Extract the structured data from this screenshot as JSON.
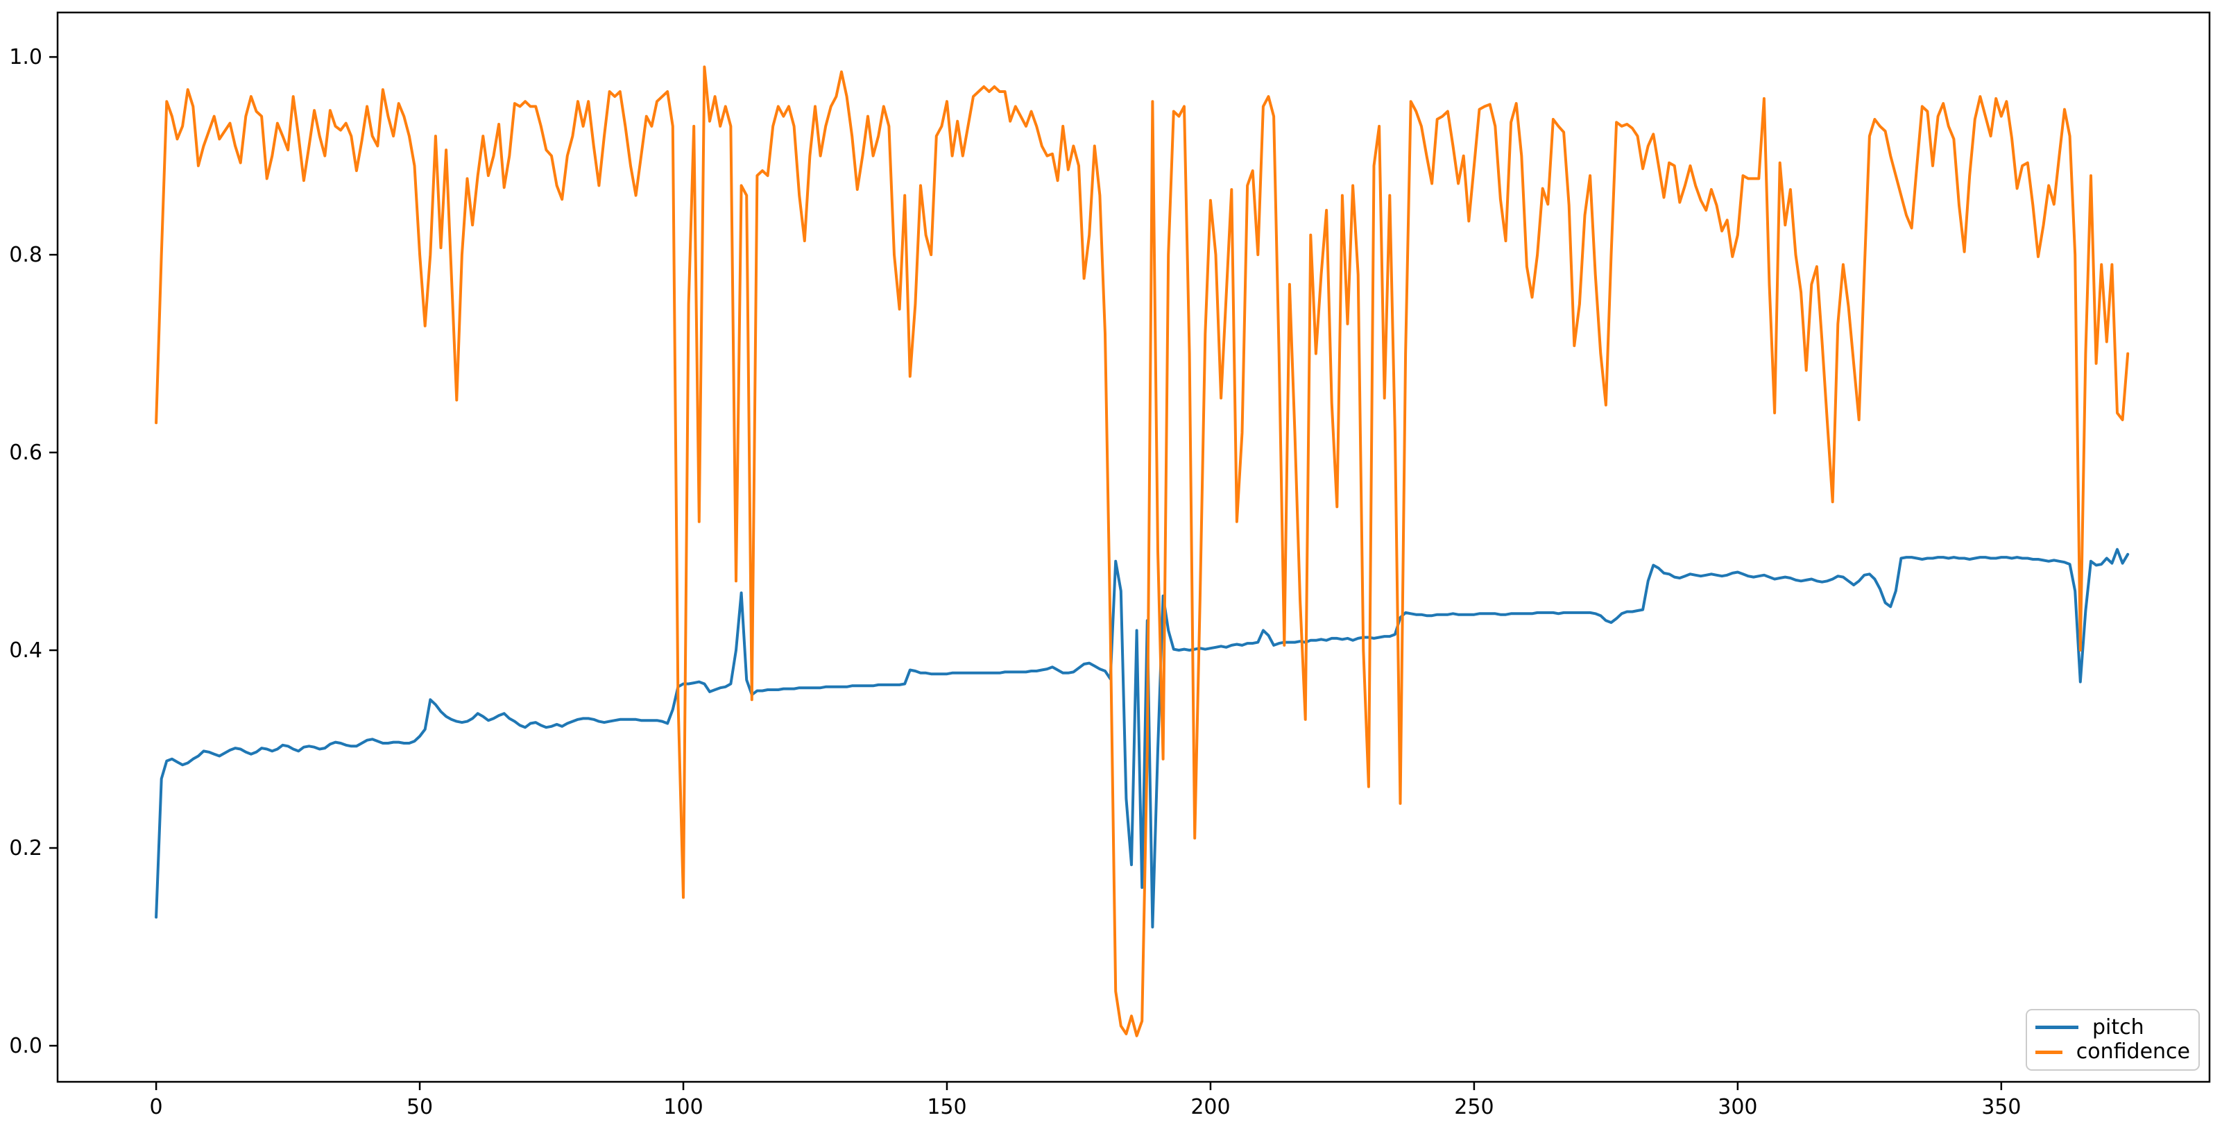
{
  "chart_data": {
    "type": "line",
    "title": "",
    "xlabel": "",
    "ylabel": "",
    "grid": false,
    "background": "#ffffff",
    "legend_position": "lower right",
    "x_start": 0,
    "x_step": 1,
    "xlim": [
      -18.7,
      389.5
    ],
    "ylim": [
      -0.0365,
      1.045
    ],
    "x_ticks": [
      0,
      50,
      100,
      150,
      200,
      250,
      300,
      350
    ],
    "y_ticks": [
      0.0,
      0.2,
      0.4,
      0.6,
      0.8,
      1.0
    ],
    "x_ticklabels": [
      "0",
      "50",
      "100",
      "150",
      "200",
      "250",
      "300",
      "350"
    ],
    "y_ticklabels": [
      "0.0",
      "0.2",
      "0.4",
      "0.6",
      "0.8",
      "1.0"
    ],
    "series": [
      {
        "name": "pitch",
        "color": "#1f77b4",
        "values": [
          0.13,
          0.27,
          0.288,
          0.29,
          0.287,
          0.284,
          0.286,
          0.29,
          0.293,
          0.298,
          0.297,
          0.295,
          0.293,
          0.296,
          0.299,
          0.301,
          0.3,
          0.297,
          0.295,
          0.297,
          0.301,
          0.3,
          0.298,
          0.3,
          0.304,
          0.303,
          0.3,
          0.298,
          0.302,
          0.303,
          0.302,
          0.3,
          0.301,
          0.305,
          0.307,
          0.306,
          0.304,
          0.303,
          0.303,
          0.306,
          0.309,
          0.31,
          0.308,
          0.306,
          0.306,
          0.307,
          0.307,
          0.306,
          0.306,
          0.308,
          0.313,
          0.32,
          0.35,
          0.345,
          0.338,
          0.333,
          0.33,
          0.328,
          0.327,
          0.328,
          0.331,
          0.336,
          0.333,
          0.329,
          0.331,
          0.334,
          0.336,
          0.331,
          0.328,
          0.324,
          0.322,
          0.326,
          0.327,
          0.324,
          0.322,
          0.323,
          0.325,
          0.323,
          0.326,
          0.328,
          0.33,
          0.331,
          0.331,
          0.33,
          0.328,
          0.327,
          0.328,
          0.329,
          0.33,
          0.33,
          0.33,
          0.33,
          0.329,
          0.329,
          0.329,
          0.329,
          0.328,
          0.326,
          0.34,
          0.363,
          0.366,
          0.366,
          0.367,
          0.368,
          0.366,
          0.358,
          0.36,
          0.362,
          0.363,
          0.366,
          0.4,
          0.458,
          0.37,
          0.355,
          0.359,
          0.359,
          0.36,
          0.36,
          0.36,
          0.361,
          0.361,
          0.361,
          0.362,
          0.362,
          0.362,
          0.362,
          0.362,
          0.363,
          0.363,
          0.363,
          0.363,
          0.363,
          0.364,
          0.364,
          0.364,
          0.364,
          0.364,
          0.365,
          0.365,
          0.365,
          0.365,
          0.365,
          0.366,
          0.38,
          0.379,
          0.377,
          0.377,
          0.376,
          0.376,
          0.376,
          0.376,
          0.377,
          0.377,
          0.377,
          0.377,
          0.377,
          0.377,
          0.377,
          0.377,
          0.377,
          0.377,
          0.378,
          0.378,
          0.378,
          0.378,
          0.378,
          0.379,
          0.379,
          0.38,
          0.381,
          0.383,
          0.38,
          0.377,
          0.377,
          0.378,
          0.382,
          0.386,
          0.387,
          0.384,
          0.381,
          0.379,
          0.371,
          0.49,
          0.46,
          0.25,
          0.183,
          0.42,
          0.16,
          0.43,
          0.12,
          0.3,
          0.455,
          0.42,
          0.401,
          0.4,
          0.401,
          0.4,
          0.401,
          0.402,
          0.401,
          0.402,
          0.403,
          0.404,
          0.403,
          0.405,
          0.406,
          0.405,
          0.407,
          0.407,
          0.408,
          0.42,
          0.415,
          0.405,
          0.407,
          0.408,
          0.408,
          0.408,
          0.409,
          0.408,
          0.41,
          0.41,
          0.411,
          0.41,
          0.412,
          0.412,
          0.411,
          0.412,
          0.41,
          0.412,
          0.413,
          0.413,
          0.412,
          0.413,
          0.414,
          0.414,
          0.416,
          0.433,
          0.438,
          0.437,
          0.436,
          0.436,
          0.435,
          0.435,
          0.436,
          0.436,
          0.436,
          0.437,
          0.436,
          0.436,
          0.436,
          0.436,
          0.437,
          0.437,
          0.437,
          0.437,
          0.436,
          0.436,
          0.437,
          0.437,
          0.437,
          0.437,
          0.437,
          0.438,
          0.438,
          0.438,
          0.438,
          0.437,
          0.438,
          0.438,
          0.438,
          0.438,
          0.438,
          0.438,
          0.437,
          0.435,
          0.43,
          0.428,
          0.432,
          0.437,
          0.439,
          0.439,
          0.44,
          0.441,
          0.47,
          0.486,
          0.483,
          0.478,
          0.477,
          0.474,
          0.473,
          0.475,
          0.477,
          0.476,
          0.475,
          0.476,
          0.477,
          0.476,
          0.475,
          0.476,
          0.478,
          0.479,
          0.477,
          0.475,
          0.474,
          0.475,
          0.476,
          0.474,
          0.472,
          0.473,
          0.474,
          0.473,
          0.471,
          0.47,
          0.471,
          0.472,
          0.47,
          0.469,
          0.47,
          0.472,
          0.475,
          0.474,
          0.47,
          0.466,
          0.47,
          0.476,
          0.477,
          0.472,
          0.462,
          0.448,
          0.444,
          0.46,
          0.493,
          0.494,
          0.494,
          0.493,
          0.492,
          0.493,
          0.493,
          0.494,
          0.494,
          0.493,
          0.494,
          0.493,
          0.493,
          0.492,
          0.493,
          0.494,
          0.494,
          0.493,
          0.493,
          0.494,
          0.494,
          0.493,
          0.494,
          0.493,
          0.493,
          0.492,
          0.492,
          0.491,
          0.49,
          0.491,
          0.49,
          0.489,
          0.487,
          0.46,
          0.368,
          0.44,
          0.49,
          0.486,
          0.487,
          0.493,
          0.488,
          0.502,
          0.488,
          0.497
        ]
      },
      {
        "name": "confidence",
        "color": "#ff7f0e",
        "values": [
          0.63,
          0.8,
          0.955,
          0.94,
          0.917,
          0.93,
          0.967,
          0.95,
          0.89,
          0.91,
          0.925,
          0.94,
          0.917,
          0.925,
          0.933,
          0.91,
          0.893,
          0.94,
          0.96,
          0.945,
          0.94,
          0.877,
          0.9,
          0.933,
          0.92,
          0.906,
          0.96,
          0.92,
          0.875,
          0.91,
          0.946,
          0.92,
          0.9,
          0.946,
          0.93,
          0.926,
          0.933,
          0.92,
          0.885,
          0.915,
          0.95,
          0.92,
          0.91,
          0.967,
          0.94,
          0.92,
          0.953,
          0.94,
          0.92,
          0.89,
          0.8,
          0.728,
          0.8,
          0.92,
          0.807,
          0.906,
          0.78,
          0.653,
          0.8,
          0.877,
          0.83,
          0.88,
          0.92,
          0.88,
          0.9,
          0.932,
          0.868,
          0.9,
          0.953,
          0.95,
          0.955,
          0.95,
          0.95,
          0.93,
          0.906,
          0.9,
          0.87,
          0.856,
          0.9,
          0.92,
          0.955,
          0.93,
          0.955,
          0.91,
          0.87,
          0.92,
          0.965,
          0.96,
          0.965,
          0.93,
          0.89,
          0.86,
          0.9,
          0.94,
          0.93,
          0.955,
          0.96,
          0.965,
          0.93,
          0.35,
          0.15,
          0.75,
          0.93,
          0.53,
          0.99,
          0.935,
          0.96,
          0.93,
          0.95,
          0.93,
          0.47,
          0.87,
          0.86,
          0.35,
          0.88,
          0.885,
          0.88,
          0.93,
          0.95,
          0.94,
          0.95,
          0.93,
          0.86,
          0.814,
          0.9,
          0.95,
          0.9,
          0.93,
          0.95,
          0.96,
          0.985,
          0.96,
          0.92,
          0.866,
          0.9,
          0.94,
          0.9,
          0.92,
          0.95,
          0.93,
          0.8,
          0.745,
          0.86,
          0.677,
          0.75,
          0.87,
          0.82,
          0.8,
          0.92,
          0.93,
          0.955,
          0.9,
          0.935,
          0.9,
          0.93,
          0.96,
          0.965,
          0.97,
          0.965,
          0.97,
          0.965,
          0.965,
          0.935,
          0.95,
          0.94,
          0.93,
          0.945,
          0.93,
          0.91,
          0.9,
          0.902,
          0.875,
          0.93,
          0.886,
          0.91,
          0.89,
          0.776,
          0.82,
          0.91,
          0.86,
          0.72,
          0.42,
          0.055,
          0.02,
          0.012,
          0.03,
          0.01,
          0.025,
          0.3,
          0.955,
          0.5,
          0.29,
          0.8,
          0.945,
          0.94,
          0.95,
          0.7,
          0.21,
          0.45,
          0.72,
          0.855,
          0.8,
          0.655,
          0.76,
          0.866,
          0.53,
          0.62,
          0.87,
          0.885,
          0.8,
          0.95,
          0.96,
          0.94,
          0.7,
          0.405,
          0.77,
          0.62,
          0.45,
          0.33,
          0.82,
          0.7,
          0.78,
          0.845,
          0.65,
          0.545,
          0.86,
          0.73,
          0.87,
          0.78,
          0.4,
          0.262,
          0.89,
          0.93,
          0.655,
          0.86,
          0.62,
          0.245,
          0.7,
          0.955,
          0.945,
          0.93,
          0.9,
          0.872,
          0.937,
          0.94,
          0.945,
          0.91,
          0.872,
          0.9,
          0.834,
          0.89,
          0.947,
          0.95,
          0.952,
          0.93,
          0.856,
          0.814,
          0.934,
          0.953,
          0.9,
          0.788,
          0.757,
          0.8,
          0.867,
          0.851,
          0.937,
          0.93,
          0.924,
          0.85,
          0.708,
          0.75,
          0.84,
          0.88,
          0.78,
          0.7,
          0.648,
          0.8,
          0.934,
          0.93,
          0.932,
          0.928,
          0.92,
          0.887,
          0.91,
          0.922,
          0.89,
          0.858,
          0.893,
          0.89,
          0.853,
          0.87,
          0.89,
          0.87,
          0.855,
          0.845,
          0.866,
          0.85,
          0.824,
          0.835,
          0.798,
          0.82,
          0.88,
          0.877,
          0.877,
          0.877,
          0.958,
          0.77,
          0.64,
          0.893,
          0.83,
          0.866,
          0.8,
          0.762,
          0.683,
          0.77,
          0.788,
          0.712,
          0.63,
          0.55,
          0.73,
          0.79,
          0.748,
          0.69,
          0.633,
          0.78,
          0.92,
          0.937,
          0.93,
          0.925,
          0.9,
          0.88,
          0.86,
          0.84,
          0.827,
          0.89,
          0.95,
          0.945,
          0.89,
          0.94,
          0.953,
          0.93,
          0.917,
          0.85,
          0.803,
          0.88,
          0.937,
          0.96,
          0.94,
          0.92,
          0.958,
          0.94,
          0.955,
          0.918,
          0.867,
          0.89,
          0.893,
          0.85,
          0.798,
          0.83,
          0.87,
          0.851,
          0.9,
          0.947,
          0.92,
          0.8,
          0.4,
          0.7,
          0.88,
          0.69,
          0.79,
          0.712,
          0.79,
          0.64,
          0.633,
          0.7
        ]
      }
    ]
  }
}
